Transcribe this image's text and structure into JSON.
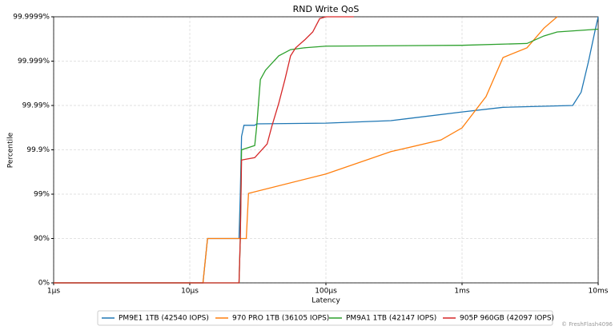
{
  "chart_data": {
    "type": "line",
    "title": "RND Write QoS",
    "x_label": "Latency",
    "y_label": "Percentile",
    "x_scale": "log",
    "y_scale": "nines",
    "grid": true,
    "legend": "bottom",
    "credit": "© FreshFlash4096",
    "xlim": [
      1,
      10000
    ],
    "xticks": [
      {
        "value": 1,
        "label": "1µs"
      },
      {
        "value": 10,
        "label": "10µs"
      },
      {
        "value": 100,
        "label": "100µs"
      },
      {
        "value": 1000,
        "label": "1ms"
      },
      {
        "value": 10000,
        "label": "10ms"
      }
    ],
    "ylim": [
      0,
      99.9999
    ],
    "yticks": [
      {
        "value": 0,
        "label": "0%"
      },
      {
        "value": 90,
        "label": "90%"
      },
      {
        "value": 99,
        "label": "99%"
      },
      {
        "value": 99.9,
        "label": "99.9%"
      },
      {
        "value": 99.99,
        "label": "99.99%"
      },
      {
        "value": 99.999,
        "label": "99.999%"
      },
      {
        "value": 99.9999,
        "label": "99.9999%"
      }
    ],
    "series": [
      {
        "name": "PM9E1 1TB (42540 IOPS)",
        "color": "#1f77b4",
        "x": [
          1,
          12.5,
          13.5,
          23,
          23.5,
          24,
          25,
          30,
          31,
          100,
          300,
          1000,
          2000,
          6500,
          7500,
          8500,
          9500,
          10000
        ],
        "values": [
          0,
          0,
          90,
          90,
          99,
          99.95,
          99.972,
          99.972,
          99.974,
          99.975,
          99.978,
          99.986,
          99.989,
          99.99,
          99.995,
          99.999,
          99.9998,
          99.9999
        ]
      },
      {
        "name": "970 PRO 1TB (36105 IOPS)",
        "color": "#ff7f0e",
        "x": [
          1,
          12.5,
          13.5,
          26,
          27,
          100,
          300,
          700,
          1000,
          1500,
          2000,
          3000,
          4000,
          5000
        ],
        "values": [
          0,
          0,
          90,
          90,
          99.04,
          99.65,
          99.89,
          99.94,
          99.968,
          99.9937,
          99.99917,
          99.9995,
          99.99982,
          99.9999
        ]
      },
      {
        "name": "PM9A1 1TB (42147 IOPS)",
        "color": "#2ca02c",
        "x": [
          1,
          23,
          23.5,
          24,
          30,
          31,
          33,
          36,
          45,
          55,
          70,
          100,
          1000,
          3000,
          4000,
          5000,
          10000
        ],
        "values": [
          0,
          0,
          90,
          99.9,
          99.92,
          99.97,
          99.9974,
          99.9984,
          99.99924,
          99.99945,
          99.9995,
          99.99954,
          99.99956,
          99.9996,
          99.99973,
          99.99978,
          99.99981
        ]
      },
      {
        "name": "905P 960GB (42097 IOPS)",
        "color": "#d62728",
        "x": [
          1,
          23,
          23.5,
          24,
          30,
          37,
          40,
          45,
          50,
          55,
          60,
          70,
          80,
          90,
          100,
          160
        ],
        "values": [
          0,
          0,
          90,
          99.83,
          99.85,
          99.926,
          99.97,
          99.991,
          99.9974,
          99.99924,
          99.9995,
          99.99967,
          99.99978,
          99.99989,
          99.9999,
          99.9999
        ]
      }
    ]
  }
}
